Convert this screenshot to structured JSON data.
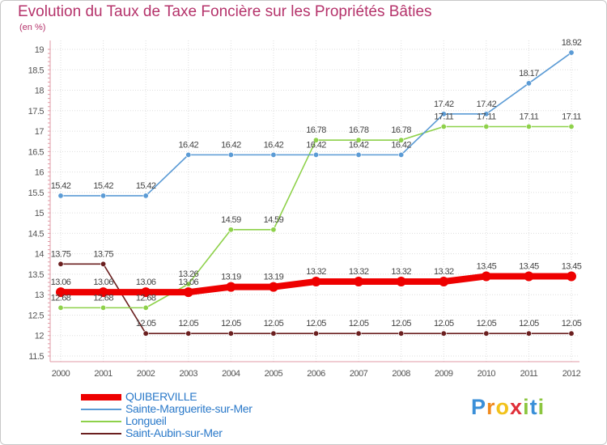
{
  "chart_data": {
    "type": "line",
    "title": "Evolution du Taux de Taxe Foncière sur les Propriétés Bâties",
    "unit_label": "(en %)",
    "xlabel": "",
    "ylabel": "",
    "categories": [
      "2000",
      "2001",
      "2002",
      "2003",
      "2004",
      "2005",
      "2006",
      "2007",
      "2008",
      "2009",
      "2010",
      "2011",
      "2012"
    ],
    "ylim": [
      11.5,
      19
    ],
    "y_ticks": [
      "11.5",
      "12",
      "12.5",
      "13",
      "13.5",
      "14",
      "14.5",
      "15",
      "15.5",
      "16",
      "16.5",
      "17",
      "17.5",
      "18",
      "18.5",
      "19"
    ],
    "series": [
      {
        "name": "QUIBERVILLE",
        "color": "#ee0000",
        "emphasis": true,
        "values": [
          13.06,
          13.06,
          13.06,
          13.06,
          13.19,
          13.19,
          13.32,
          13.32,
          13.32,
          13.32,
          13.45,
          13.45,
          13.45
        ],
        "labels": [
          "13.06",
          "13.06",
          "13.06",
          "13.06",
          "13.19",
          "13.19",
          "13.32",
          "13.32",
          "13.32",
          "13.32",
          "13.45",
          "13.45",
          "13.45"
        ]
      },
      {
        "name": "Sainte-Marguerite-sur-Mer",
        "color": "#5b9bd5",
        "emphasis": false,
        "values": [
          15.42,
          15.42,
          15.42,
          16.42,
          16.42,
          16.42,
          16.42,
          16.42,
          16.42,
          17.42,
          17.42,
          18.17,
          18.92
        ],
        "labels": [
          "15.42",
          "15.42",
          "15.42",
          "16.42",
          "16.42",
          "16.42",
          "16.42",
          "16.42",
          "16.42",
          "17.42",
          "17.42",
          "18.17",
          "18.92"
        ]
      },
      {
        "name": "Longueil",
        "color": "#8ed14a",
        "emphasis": false,
        "values": [
          12.68,
          12.68,
          12.68,
          13.26,
          14.59,
          14.59,
          16.78,
          16.78,
          16.78,
          17.11,
          17.11,
          17.11,
          17.11
        ],
        "labels": [
          "12.68",
          "12.68",
          "12.68",
          "13.26",
          "14.59",
          "14.59",
          "16.78",
          "16.78",
          "16.78",
          "17.11",
          "17.11",
          "17.11",
          "17.11"
        ]
      },
      {
        "name": "Saint-Aubin-sur-Mer",
        "color": "#6b1f1f",
        "emphasis": false,
        "values": [
          13.75,
          13.75,
          12.05,
          12.05,
          12.05,
          12.05,
          12.05,
          12.05,
          12.05,
          12.05,
          12.05,
          12.05,
          12.05
        ],
        "labels": [
          "13.75",
          "13.75",
          "12.05",
          "12.05",
          "12.05",
          "12.05",
          "12.05",
          "12.05",
          "12.05",
          "12.05",
          "12.05",
          "12.05",
          "12.05"
        ]
      }
    ]
  },
  "logo": {
    "letters": [
      "P",
      "r",
      "o",
      "x",
      "i",
      "t",
      "i"
    ],
    "colors": [
      "#3a8fd8",
      "#f08a1e",
      "#f2c21b",
      "#e0303a",
      "#8cc63f",
      "#3a8fd8",
      "#8cc63f"
    ]
  }
}
